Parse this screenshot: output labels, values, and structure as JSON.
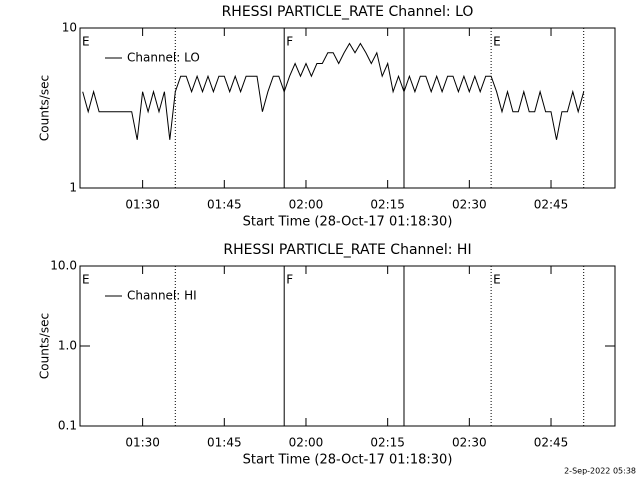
{
  "chart_data": [
    {
      "type": "line",
      "title": "RHESSI PARTICLE_RATE Channel: LO",
      "xlabel": "Start Time (28-Oct-17 01:18:30)",
      "ylabel": "Counts/sec",
      "log_y": true,
      "ylim": [
        1,
        10
      ],
      "yticks": [
        1,
        10
      ],
      "xlim": [
        "01:18:30",
        "02:56:45"
      ],
      "xticks": [
        "01:30",
        "01:45",
        "02:00",
        "02:15",
        "02:30",
        "02:45"
      ],
      "legend": "upper left",
      "vlines": [
        {
          "x": "01:36",
          "style": "dotted"
        },
        {
          "x": "01:56",
          "style": "solid"
        },
        {
          "x": "02:18",
          "style": "solid"
        },
        {
          "x": "02:34",
          "style": "dotted"
        },
        {
          "x": "02:51",
          "style": "dotted"
        }
      ],
      "annotations": [
        {
          "x": "01:18:30",
          "text": "E"
        },
        {
          "x": "01:56",
          "text": "F"
        },
        {
          "x": "02:34",
          "text": "E"
        }
      ],
      "x": [
        "01:19",
        "01:20",
        "01:21",
        "01:22",
        "01:23",
        "01:24",
        "01:25",
        "01:26",
        "01:27",
        "01:28",
        "01:29",
        "01:30",
        "01:31",
        "01:32",
        "01:33",
        "01:34",
        "01:35",
        "01:36",
        "01:37",
        "01:38",
        "01:39",
        "01:40",
        "01:41",
        "01:42",
        "01:43",
        "01:44",
        "01:45",
        "01:46",
        "01:47",
        "01:48",
        "01:49",
        "01:50",
        "01:51",
        "01:52",
        "01:53",
        "01:54",
        "01:55",
        "01:56",
        "01:57",
        "01:58",
        "01:59",
        "02:00",
        "02:01",
        "02:02",
        "02:03",
        "02:04",
        "02:05",
        "02:06",
        "02:07",
        "02:08",
        "02:09",
        "02:10",
        "02:11",
        "02:12",
        "02:13",
        "02:14",
        "02:15",
        "02:16",
        "02:17",
        "02:18",
        "02:19",
        "02:20",
        "02:21",
        "02:22",
        "02:23",
        "02:24",
        "02:25",
        "02:26",
        "02:27",
        "02:28",
        "02:29",
        "02:30",
        "02:31",
        "02:32",
        "02:33",
        "02:34",
        "02:35",
        "02:36",
        "02:37",
        "02:38",
        "02:39",
        "02:40",
        "02:41",
        "02:42",
        "02:43",
        "02:44",
        "02:45",
        "02:46",
        "02:47",
        "02:48",
        "02:49",
        "02:50",
        "02:51"
      ],
      "series": [
        {
          "name": "Channel: LO",
          "color": "#000000",
          "values": [
            4,
            3,
            4,
            3,
            3,
            3,
            3,
            3,
            3,
            3,
            2,
            4,
            3,
            4,
            3,
            4,
            2,
            4,
            5,
            5,
            4,
            5,
            4,
            5,
            4,
            5,
            5,
            4,
            5,
            4,
            5,
            5,
            5,
            3,
            4,
            5,
            5,
            4,
            5,
            6,
            5,
            6,
            5,
            6,
            6,
            7,
            7,
            6,
            7,
            8,
            7,
            8,
            7,
            6,
            7,
            5,
            6,
            4,
            5,
            4,
            5,
            4,
            5,
            5,
            4,
            5,
            4,
            5,
            5,
            4,
            5,
            4,
            5,
            4,
            5,
            5,
            4,
            3,
            4,
            3,
            3,
            4,
            3,
            3,
            4,
            3,
            3,
            2,
            3,
            3,
            4,
            3,
            4
          ]
        }
      ]
    },
    {
      "type": "line",
      "title": "RHESSI PARTICLE_RATE Channel: HI",
      "xlabel": "Start Time (28-Oct-17 01:18:30)",
      "ylabel": "Counts/sec",
      "log_y": true,
      "ylim": [
        0.1,
        10
      ],
      "yticks": [
        0.1,
        {
          "value": 1,
          "label": "1.0"
        },
        {
          "value": 10,
          "label": "10.0"
        }
      ],
      "xlim": [
        "01:18:30",
        "02:56:45"
      ],
      "xticks": [
        "01:30",
        "01:45",
        "02:00",
        "02:15",
        "02:30",
        "02:45"
      ],
      "legend": "upper left",
      "vlines": [
        {
          "x": "01:36",
          "style": "dotted"
        },
        {
          "x": "01:56",
          "style": "solid"
        },
        {
          "x": "02:18",
          "style": "solid"
        },
        {
          "x": "02:34",
          "style": "dotted"
        },
        {
          "x": "02:51",
          "style": "dotted"
        }
      ],
      "annotations": [
        {
          "x": "01:18:30",
          "text": "E"
        },
        {
          "x": "01:56",
          "text": "F"
        },
        {
          "x": "02:34",
          "text": "E"
        }
      ],
      "x": [],
      "series": [
        {
          "name": "Channel: HI",
          "color": "#000000",
          "values": []
        }
      ]
    }
  ],
  "footer": "2-Sep-2022 05:38"
}
